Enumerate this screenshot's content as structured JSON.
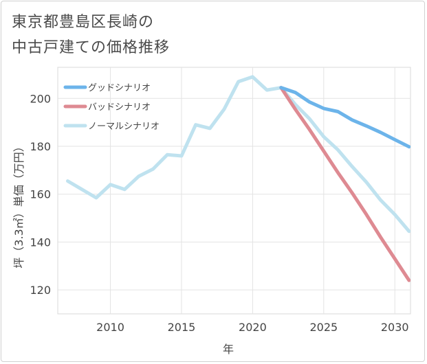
{
  "chart_data": {
    "type": "line",
    "title": "東京都豊島区長崎の\n中古戸建ての価格推移",
    "xlabel": "年",
    "ylabel": "坪（3.3㎡）単価（万円）",
    "xlim": [
      2006.3,
      2031.1
    ],
    "ylim": [
      110,
      213
    ],
    "x_ticks": [
      "2010",
      "2015",
      "2020",
      "2025",
      "2030"
    ],
    "y_ticks": [
      "120",
      "140",
      "160",
      "180",
      "200"
    ],
    "grid": true,
    "legend_position": "top-left",
    "series": [
      {
        "name": "グッドシナリオ",
        "color": "#6cb4ea",
        "x": [
          2022,
          2023,
          2024,
          2025,
          2026,
          2027,
          2028,
          2029,
          2030,
          2031
        ],
        "y": [
          204.5,
          202.5,
          198.5,
          195.8,
          194.5,
          191,
          188.5,
          185.8,
          182.8,
          179.8
        ]
      },
      {
        "name": "バッドシナリオ",
        "color": "#de8a92",
        "x": [
          2022,
          2023,
          2024,
          2025,
          2026,
          2027,
          2028,
          2029,
          2030,
          2031
        ],
        "y": [
          204.5,
          195.5,
          187,
          178,
          169,
          160.5,
          151.5,
          142,
          133,
          124
        ]
      },
      {
        "name": "ノーマルシナリオ",
        "color": "#bfe2ef",
        "x": [
          2007,
          2008,
          2009,
          2010,
          2011,
          2012,
          2013,
          2014,
          2015,
          2016,
          2017,
          2018,
          2019,
          2020,
          2021,
          2022,
          2023,
          2024,
          2025,
          2026,
          2027,
          2028,
          2029,
          2030,
          2031
        ],
        "y": [
          165.5,
          162,
          158.5,
          164,
          162,
          167.5,
          170.5,
          176.5,
          176,
          189,
          187.5,
          195.5,
          207,
          209,
          203.5,
          204.5,
          197.5,
          191.5,
          184,
          178.5,
          171.5,
          165,
          157.5,
          151.5,
          144.5
        ]
      }
    ]
  }
}
